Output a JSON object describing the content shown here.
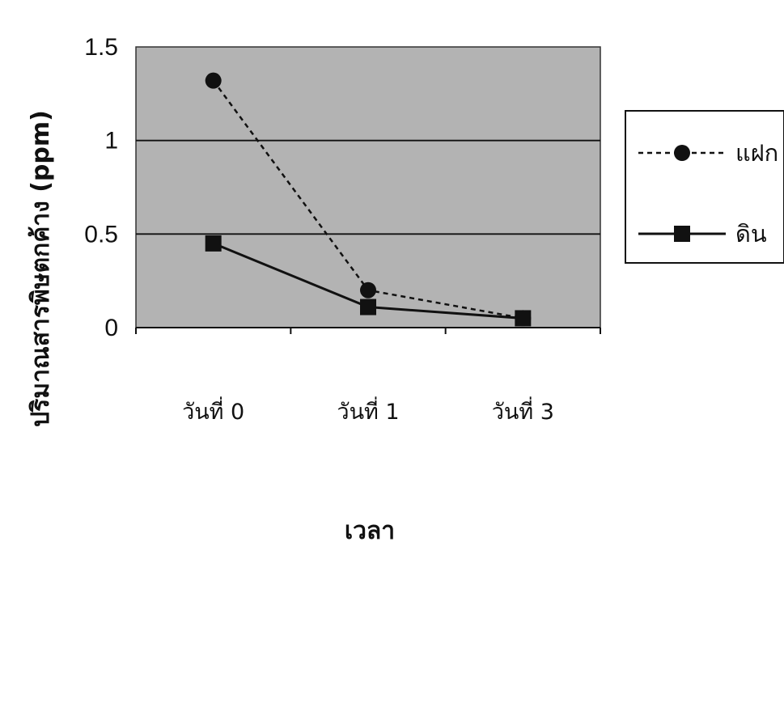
{
  "chart_data": {
    "type": "line",
    "categories": [
      "วันที่ 0",
      "วันที่ 1",
      "วันที่ 3"
    ],
    "series": [
      {
        "name": "แฝก",
        "values": [
          1.32,
          0.2,
          0.05
        ],
        "style": "dashed",
        "marker": "circle"
      },
      {
        "name": "ดิน",
        "values": [
          0.45,
          0.11,
          0.05
        ],
        "style": "solid",
        "marker": "square"
      }
    ],
    "xlabel": "เวลา",
    "ylabel": "ปริมาณสารพิษตกค้าง (ppm)",
    "ylim": [
      0,
      1.5
    ],
    "yticks": [
      "0",
      "0.5",
      "1",
      "1.5"
    ],
    "grid": true,
    "legend_position": "right",
    "colors": {
      "plot_background": "#b3b3b3",
      "series_line": "#111111",
      "gridline": "#111111"
    }
  }
}
